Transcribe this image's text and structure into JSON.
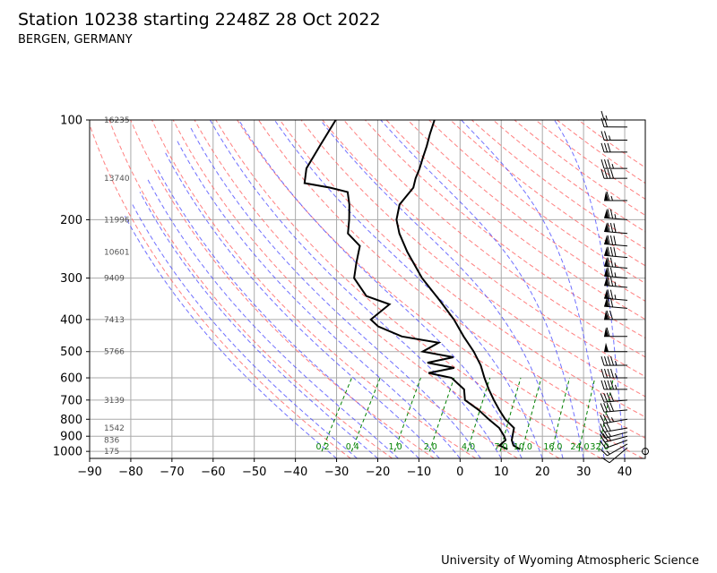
{
  "header": {
    "title": "Station 10238 starting 2248Z 28 Oct 2022",
    "subtitle": "BERGEN, GERMANY"
  },
  "footer": {
    "credit": "University of Wyoming Atmospheric Science"
  },
  "colors": {
    "temperature": "#000000",
    "dewpoint": "#000000",
    "dry_adiabats": "#ff6a6a",
    "moist_adiabats": "#4c4cff",
    "mixing_ratio": "#008000",
    "isotherms_low": "#cc0066",
    "grid": "#aaaaaa"
  },
  "chart_data": {
    "type": "skew-t",
    "xlim": [
      -90,
      45
    ],
    "ylim": [
      1050,
      100
    ],
    "y_scale": "log",
    "x_ticks": [
      -90,
      -80,
      -70,
      -60,
      -50,
      -40,
      -30,
      -20,
      -10,
      0,
      10,
      20,
      30,
      40
    ],
    "x_tick_labels": [
      "−90",
      "−80",
      "−70",
      "−60",
      "−50",
      "−40",
      "−30",
      "−20",
      "−10",
      "0",
      "10",
      "20",
      "30",
      "40"
    ],
    "y_ticks": [
      1000,
      900,
      800,
      700,
      600,
      500,
      400,
      300,
      200,
      100
    ],
    "y_tick_labels": [
      "1000",
      "900",
      "800",
      "700",
      "600",
      "500",
      "400",
      "300",
      "200",
      "100"
    ],
    "grid": true,
    "height_labels": [
      {
        "p": 100,
        "label": "16235"
      },
      {
        "p": 150,
        "label": "13740"
      },
      {
        "p": 200,
        "label": "11996"
      },
      {
        "p": 250,
        "label": "10601"
      },
      {
        "p": 300,
        "label": "9409"
      },
      {
        "p": 400,
        "label": "7413"
      },
      {
        "p": 500,
        "label": "5766"
      },
      {
        "p": 700,
        "label": "3139"
      },
      {
        "p": 850,
        "label": "1542"
      },
      {
        "p": 925,
        "label": "836"
      },
      {
        "p": 1000,
        "label": "175"
      }
    ],
    "mixing_ratio_labels": [
      "0.2",
      "0.4",
      "1.0",
      "2.0",
      "4.0",
      "7.0",
      "10.0",
      "16.0",
      "24.0",
      "32.0"
    ],
    "mixing_ratio_values": [
      0.2,
      0.4,
      1.0,
      2.0,
      4.0,
      7.0,
      10.0,
      16.0,
      24.0,
      32.0
    ],
    "temperature": [
      {
        "p": 985,
        "t": 13.0
      },
      {
        "p": 960,
        "t": 10.8
      },
      {
        "p": 925,
        "t": 9.5
      },
      {
        "p": 900,
        "t": 9.0
      },
      {
        "p": 850,
        "t": 8.0
      },
      {
        "p": 800,
        "t": 4.4
      },
      {
        "p": 750,
        "t": 1.4
      },
      {
        "p": 700,
        "t": -1.6
      },
      {
        "p": 650,
        "t": -4.6
      },
      {
        "p": 600,
        "t": -7.6
      },
      {
        "p": 550,
        "t": -10.6
      },
      {
        "p": 500,
        "t": -14.6
      },
      {
        "p": 450,
        "t": -19.6
      },
      {
        "p": 400,
        "t": -24.8
      },
      {
        "p": 350,
        "t": -31.5
      },
      {
        "p": 300,
        "t": -39.5
      },
      {
        "p": 250,
        "t": -47.5
      },
      {
        "p": 220,
        "t": -52.5
      },
      {
        "p": 200,
        "t": -55.5
      },
      {
        "p": 180,
        "t": -57.3
      },
      {
        "p": 160,
        "t": -56.8
      },
      {
        "p": 150,
        "t": -57.8
      },
      {
        "p": 140,
        "t": -58.5
      },
      {
        "p": 130,
        "t": -59.5
      },
      {
        "p": 120,
        "t": -60.5
      },
      {
        "p": 110,
        "t": -61.8
      },
      {
        "p": 100,
        "t": -63.0
      }
    ],
    "dewpoint": [
      {
        "p": 985,
        "t": 10.0
      },
      {
        "p": 960,
        "t": 7.4
      },
      {
        "p": 925,
        "t": 8.0
      },
      {
        "p": 900,
        "t": 7.0
      },
      {
        "p": 850,
        "t": 4.4
      },
      {
        "p": 800,
        "t": 0.4
      },
      {
        "p": 750,
        "t": -3.6
      },
      {
        "p": 700,
        "t": -8.6
      },
      {
        "p": 650,
        "t": -10.6
      },
      {
        "p": 600,
        "t": -15.6
      },
      {
        "p": 580,
        "t": -22.0
      },
      {
        "p": 560,
        "t": -16.6
      },
      {
        "p": 540,
        "t": -24.0
      },
      {
        "p": 520,
        "t": -18.6
      },
      {
        "p": 500,
        "t": -27.0
      },
      {
        "p": 470,
        "t": -24.6
      },
      {
        "p": 450,
        "t": -34.6
      },
      {
        "p": 420,
        "t": -42.0
      },
      {
        "p": 400,
        "t": -45.0
      },
      {
        "p": 360,
        "t": -43.0
      },
      {
        "p": 340,
        "t": -50.0
      },
      {
        "p": 300,
        "t": -56.0
      },
      {
        "p": 270,
        "t": -58.0
      },
      {
        "p": 240,
        "t": -60.0
      },
      {
        "p": 220,
        "t": -65.0
      },
      {
        "p": 200,
        "t": -67.0
      },
      {
        "p": 180,
        "t": -69.5
      },
      {
        "p": 165,
        "t": -72.0
      },
      {
        "p": 160,
        "t": -77.0
      },
      {
        "p": 155,
        "t": -84.0
      },
      {
        "p": 140,
        "t": -86.0
      },
      {
        "p": 120,
        "t": -86.5
      },
      {
        "p": 100,
        "t": -87.0
      }
    ],
    "wind_barbs": [
      {
        "p": 1000,
        "dir": 200,
        "kt": 0
      },
      {
        "p": 975,
        "dir": 230,
        "kt": 10
      },
      {
        "p": 950,
        "dir": 240,
        "kt": 15
      },
      {
        "p": 925,
        "dir": 250,
        "kt": 20
      },
      {
        "p": 900,
        "dir": 255,
        "kt": 25
      },
      {
        "p": 875,
        "dir": 255,
        "kt": 25
      },
      {
        "p": 850,
        "dir": 260,
        "kt": 30
      },
      {
        "p": 800,
        "dir": 260,
        "kt": 35
      },
      {
        "p": 750,
        "dir": 265,
        "kt": 40
      },
      {
        "p": 700,
        "dir": 265,
        "kt": 40
      },
      {
        "p": 650,
        "dir": 270,
        "kt": 45
      },
      {
        "p": 600,
        "dir": 270,
        "kt": 45
      },
      {
        "p": 550,
        "dir": 270,
        "kt": 45
      },
      {
        "p": 500,
        "dir": 270,
        "kt": 50
      },
      {
        "p": 450,
        "dir": 270,
        "kt": 60
      },
      {
        "p": 400,
        "dir": 270,
        "kt": 70
      },
      {
        "p": 370,
        "dir": 275,
        "kt": 70
      },
      {
        "p": 350,
        "dir": 275,
        "kt": 75
      },
      {
        "p": 320,
        "dir": 275,
        "kt": 75
      },
      {
        "p": 300,
        "dir": 275,
        "kt": 75
      },
      {
        "p": 280,
        "dir": 275,
        "kt": 75
      },
      {
        "p": 260,
        "dir": 275,
        "kt": 80
      },
      {
        "p": 240,
        "dir": 275,
        "kt": 80
      },
      {
        "p": 220,
        "dir": 275,
        "kt": 80
      },
      {
        "p": 200,
        "dir": 275,
        "kt": 75
      },
      {
        "p": 175,
        "dir": 270,
        "kt": 65
      },
      {
        "p": 150,
        "dir": 270,
        "kt": 40
      },
      {
        "p": 140,
        "dir": 270,
        "kt": 35
      },
      {
        "p": 125,
        "dir": 270,
        "kt": 30
      },
      {
        "p": 115,
        "dir": 270,
        "kt": 25
      },
      {
        "p": 105,
        "dir": 270,
        "kt": 20
      },
      {
        "p": 100,
        "dir": 270,
        "kt": 15
      }
    ]
  }
}
